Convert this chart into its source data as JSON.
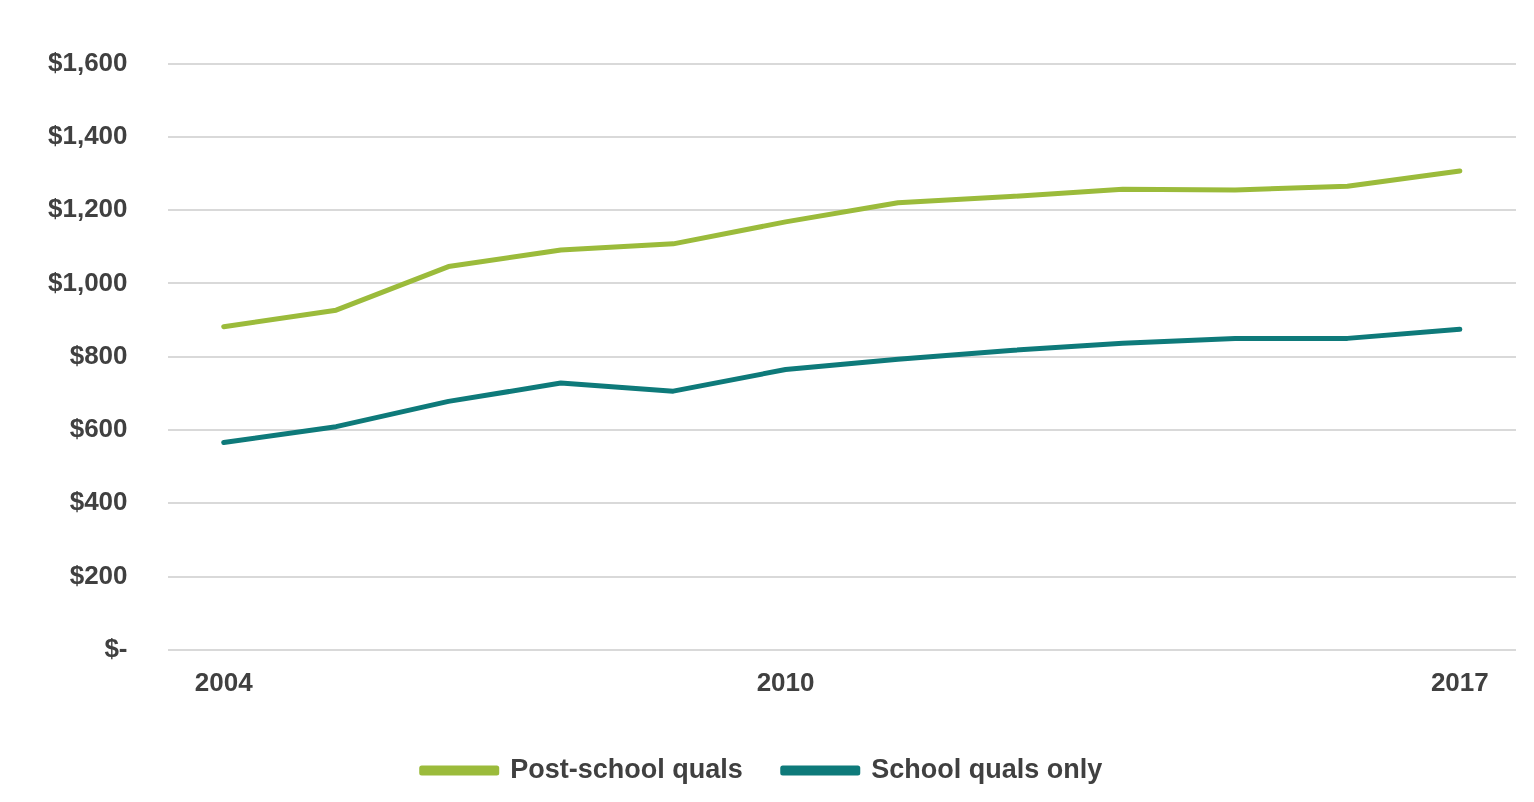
{
  "chart_data": {
    "type": "line",
    "categories": [
      "2004",
      null,
      null,
      null,
      null,
      "2010",
      null,
      null,
      null,
      null,
      null,
      "2017"
    ],
    "series": [
      {
        "name": "Post-school quals",
        "color": "#9bbb3b",
        "values": [
          882,
          927,
          1046,
          1091,
          1108,
          1168,
          1220,
          1237,
          1257,
          1255,
          1265,
          1307
        ]
      },
      {
        "name": "School quals only",
        "color": "#0e7a7a",
        "values": [
          566,
          609,
          678,
          728,
          706,
          765,
          793,
          817,
          837,
          850,
          850,
          875
        ]
      }
    ],
    "ylim": [
      0,
      1600
    ],
    "yticks": [
      {
        "value": 0,
        "label": "$-"
      },
      {
        "value": 200,
        "label": "$200"
      },
      {
        "value": 400,
        "label": "$400"
      },
      {
        "value": 600,
        "label": "$600"
      },
      {
        "value": 800,
        "label": "$800"
      },
      {
        "value": 1000,
        "label": "$1,000"
      },
      {
        "value": 1200,
        "label": "$1,200"
      },
      {
        "value": 1400,
        "label": "$1,400"
      },
      {
        "value": 1600,
        "label": "$1,600"
      }
    ],
    "grid": "y",
    "legend": "bottom",
    "marker": "none",
    "line_style": "solid"
  }
}
